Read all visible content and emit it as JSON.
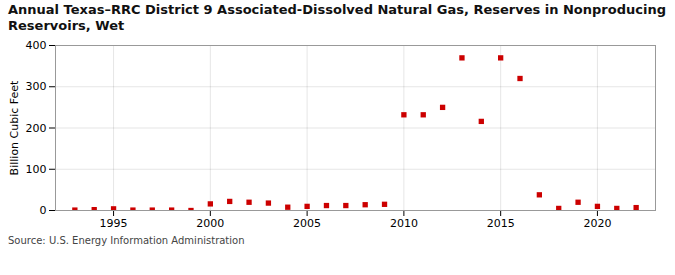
{
  "chart_data": {
    "type": "scatter",
    "title": "Annual Texas–RRC District 9 Associated-Dissolved Natural Gas, Reserves in Nonproducing\nReservoirs, Wet",
    "ylabel": "Billion Cubic Feet",
    "source": "Source: U.S. Energy Information Administration",
    "x": [
      1993,
      1994,
      1995,
      1996,
      1997,
      1998,
      1999,
      2000,
      2001,
      2002,
      2003,
      2004,
      2005,
      2006,
      2007,
      2008,
      2009,
      2010,
      2011,
      2012,
      2013,
      2014,
      2015,
      2016,
      2017,
      2018,
      2019,
      2020,
      2021,
      2022
    ],
    "values": [
      1,
      2,
      4,
      1,
      1,
      1,
      0,
      16,
      22,
      20,
      18,
      8,
      10,
      12,
      12,
      14,
      15,
      232,
      232,
      250,
      370,
      216,
      370,
      320,
      38,
      5,
      20,
      10,
      5,
      7
    ],
    "color": "#cc0000",
    "marker": "square",
    "xlim": [
      1992,
      2023
    ],
    "xticks": [
      1995,
      2000,
      2005,
      2010,
      2015,
      2020
    ],
    "ylim": [
      0,
      400
    ],
    "yticks": [
      0,
      100,
      200,
      300,
      400
    ],
    "grid": true
  }
}
